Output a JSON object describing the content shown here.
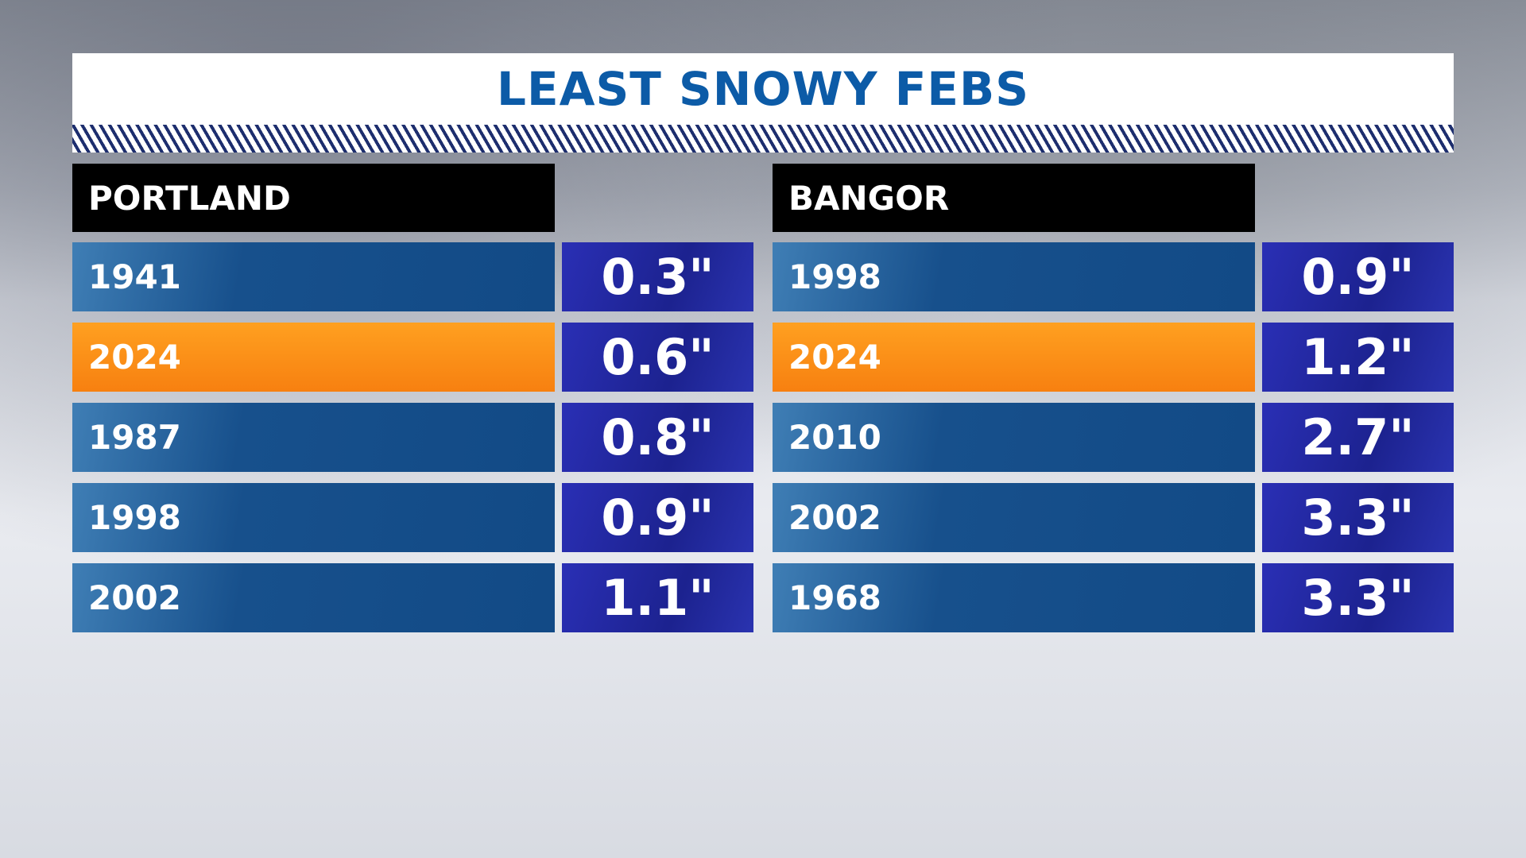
{
  "title": "LEAST SNOWY FEBS",
  "tables": [
    {
      "header": "PORTLAND",
      "rows": [
        {
          "year": "1941",
          "value": "0.3\""
        },
        {
          "year": "2024",
          "value": "0.6\"",
          "highlight": true
        },
        {
          "year": "1987",
          "value": "0.8\""
        },
        {
          "year": "1998",
          "value": "0.9\""
        },
        {
          "year": "2002",
          "value": "1.1\""
        }
      ]
    },
    {
      "header": "BANGOR",
      "rows": [
        {
          "year": "1998",
          "value": "0.9\""
        },
        {
          "year": "2024",
          "value": "1.2\"",
          "highlight": true
        },
        {
          "year": "2010",
          "value": "2.7\""
        },
        {
          "year": "2002",
          "value": "3.3\""
        },
        {
          "year": "1968",
          "value": "3.3\""
        }
      ]
    }
  ]
}
